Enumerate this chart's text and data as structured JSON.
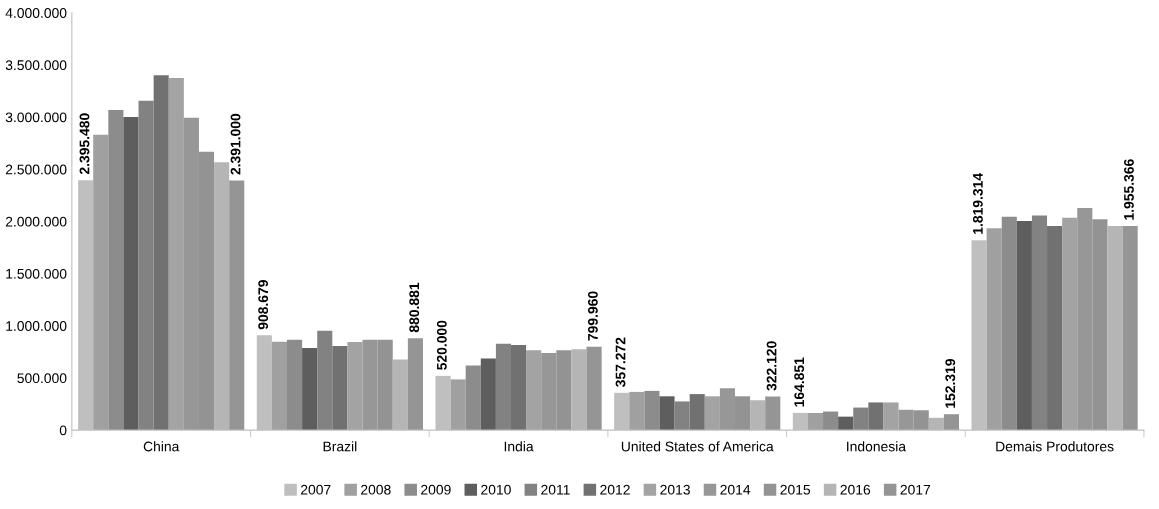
{
  "chart_data": {
    "type": "bar",
    "categories": [
      "China",
      "Brazil",
      "India",
      "United States of America",
      "Indonesia",
      "Demais Produtores"
    ],
    "ylim": [
      0,
      4000000
    ],
    "yticks": [
      {
        "value": 0,
        "label": "0"
      },
      {
        "value": 500000,
        "label": "500.000"
      },
      {
        "value": 1000000,
        "label": "1.000.000"
      },
      {
        "value": 1500000,
        "label": "1.500.000"
      },
      {
        "value": 2000000,
        "label": "2.000.000"
      },
      {
        "value": 2500000,
        "label": "2.500.000"
      },
      {
        "value": 3000000,
        "label": "3.000.000"
      },
      {
        "value": 3500000,
        "label": "3.500.000"
      },
      {
        "value": 4000000,
        "label": "4.000.000"
      }
    ],
    "grid": false,
    "legend": "bottom",
    "series": [
      {
        "name": "2007",
        "color": "#bfbfbf",
        "values": [
          2395480,
          908679,
          520000,
          357272,
          164851,
          1819314
        ],
        "value_labels": [
          "2.395.480",
          "908.679",
          "520.000",
          "357.272",
          "164.851",
          "1.819.314"
        ]
      },
      {
        "name": "2008",
        "color": "#a0a0a0",
        "values": [
          2830000,
          847000,
          486000,
          366000,
          164000,
          1935000
        ]
      },
      {
        "name": "2009",
        "color": "#8c8c8c",
        "values": [
          3068000,
          867000,
          619000,
          376000,
          178000,
          2044000
        ]
      },
      {
        "name": "2010",
        "color": "#5e5e5e",
        "values": [
          3000000,
          786000,
          687000,
          324000,
          129000,
          2003000
        ]
      },
      {
        "name": "2011",
        "color": "#828282",
        "values": [
          3156000,
          952000,
          827000,
          275000,
          216000,
          2056000
        ]
      },
      {
        "name": "2012",
        "color": "#717171",
        "values": [
          3401000,
          806000,
          816000,
          345000,
          265000,
          1955000
        ]
      },
      {
        "name": "2013",
        "color": "#a3a3a3",
        "values": [
          3374000,
          844000,
          765000,
          324000,
          265000,
          2036000
        ]
      },
      {
        "name": "2014",
        "color": "#979797",
        "values": [
          2993000,
          867000,
          738000,
          401000,
          195000,
          2128000
        ]
      },
      {
        "name": "2015",
        "color": "#939393",
        "values": [
          2667000,
          867000,
          765000,
          324000,
          190000,
          2020000
        ]
      },
      {
        "name": "2016",
        "color": "#b5b5b5",
        "values": [
          2568000,
          677000,
          776000,
          286000,
          118000,
          1955000
        ]
      },
      {
        "name": "2017",
        "color": "#959595",
        "values": [
          2391000,
          880881,
          799960,
          322120,
          152319,
          1955366
        ],
        "value_labels": [
          "2.391.000",
          "880.881",
          "799.960",
          "322.120",
          "152.319",
          "1.955.366"
        ]
      }
    ]
  }
}
